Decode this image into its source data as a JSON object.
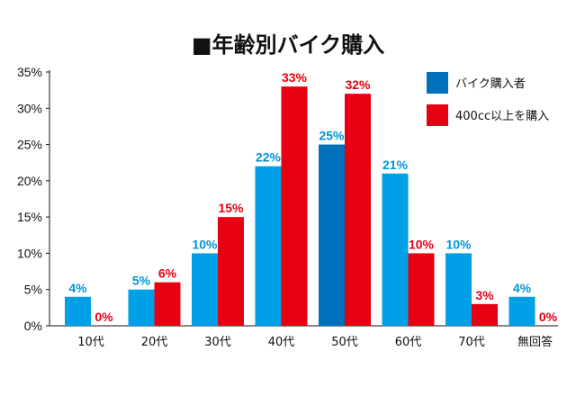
{
  "chart_data": {
    "type": "bar",
    "title": "■年齢別バイク購入",
    "categories": [
      "10代",
      "20代",
      "30代",
      "40代",
      "50代",
      "60代",
      "70代",
      "無回答"
    ],
    "series": [
      {
        "name": "バイク購入者",
        "values": [
          4,
          5,
          10,
          22,
          25,
          21,
          10,
          4
        ],
        "labels": [
          "4%",
          "5%",
          "10%",
          "22%",
          "25%",
          "21%",
          "10%",
          "4%"
        ],
        "color": "#00a0e9",
        "highlight": {
          "index": 4,
          "color": "#0072bc"
        }
      },
      {
        "name": "400cc以上を購入",
        "values": [
          0,
          6,
          15,
          33,
          32,
          10,
          3,
          0
        ],
        "labels": [
          "0%",
          "6%",
          "15%",
          "33%",
          "32%",
          "10%",
          "3%",
          "0%"
        ],
        "color": "#e60012"
      }
    ],
    "yticks": [
      "0%",
      "5%",
      "10%",
      "15%",
      "20%",
      "25%",
      "30%",
      "35%"
    ],
    "ylim": [
      0,
      35
    ],
    "legend_position": "top-right",
    "legend_colors": [
      "#0072bc",
      "#e60012"
    ],
    "label_colors": [
      "#0095d9",
      "#e60012"
    ]
  }
}
